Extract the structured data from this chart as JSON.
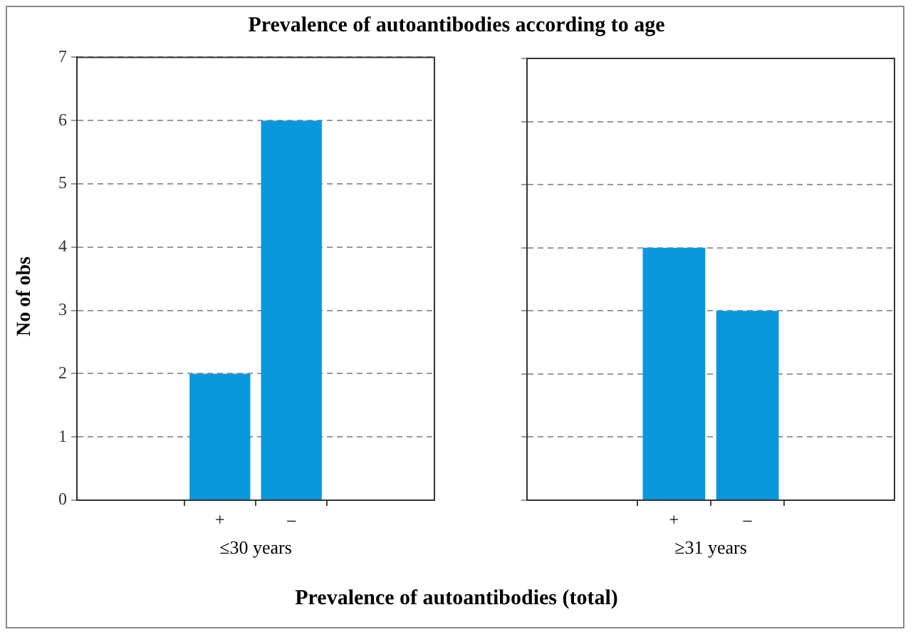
{
  "chart_data": [
    {
      "type": "bar",
      "title": "Prevalence of autoantibodies according to age",
      "ylabel": "No of obs",
      "xlabel": "≤30 years",
      "categories": [
        "+",
        "–"
      ],
      "values": [
        2,
        6
      ],
      "color": "#0a96dc",
      "ylim": [
        0,
        7
      ],
      "yticks": [
        0,
        1,
        2,
        3,
        4,
        5,
        6,
        7
      ],
      "grid": "y",
      "legend": false
    },
    {
      "type": "bar",
      "xlabel": "≥31 years",
      "categories": [
        "+",
        "–"
      ],
      "values": [
        4,
        3
      ],
      "color": "#0a96dc",
      "ylim": [
        0,
        7
      ],
      "yticks": [
        0,
        1,
        2,
        3,
        4,
        5,
        6,
        7
      ],
      "grid": "y",
      "legend": false,
      "tick_labels": "x",
      "annotations": [
        "Prevalence of autoantibodies (total)"
      ]
    }
  ]
}
